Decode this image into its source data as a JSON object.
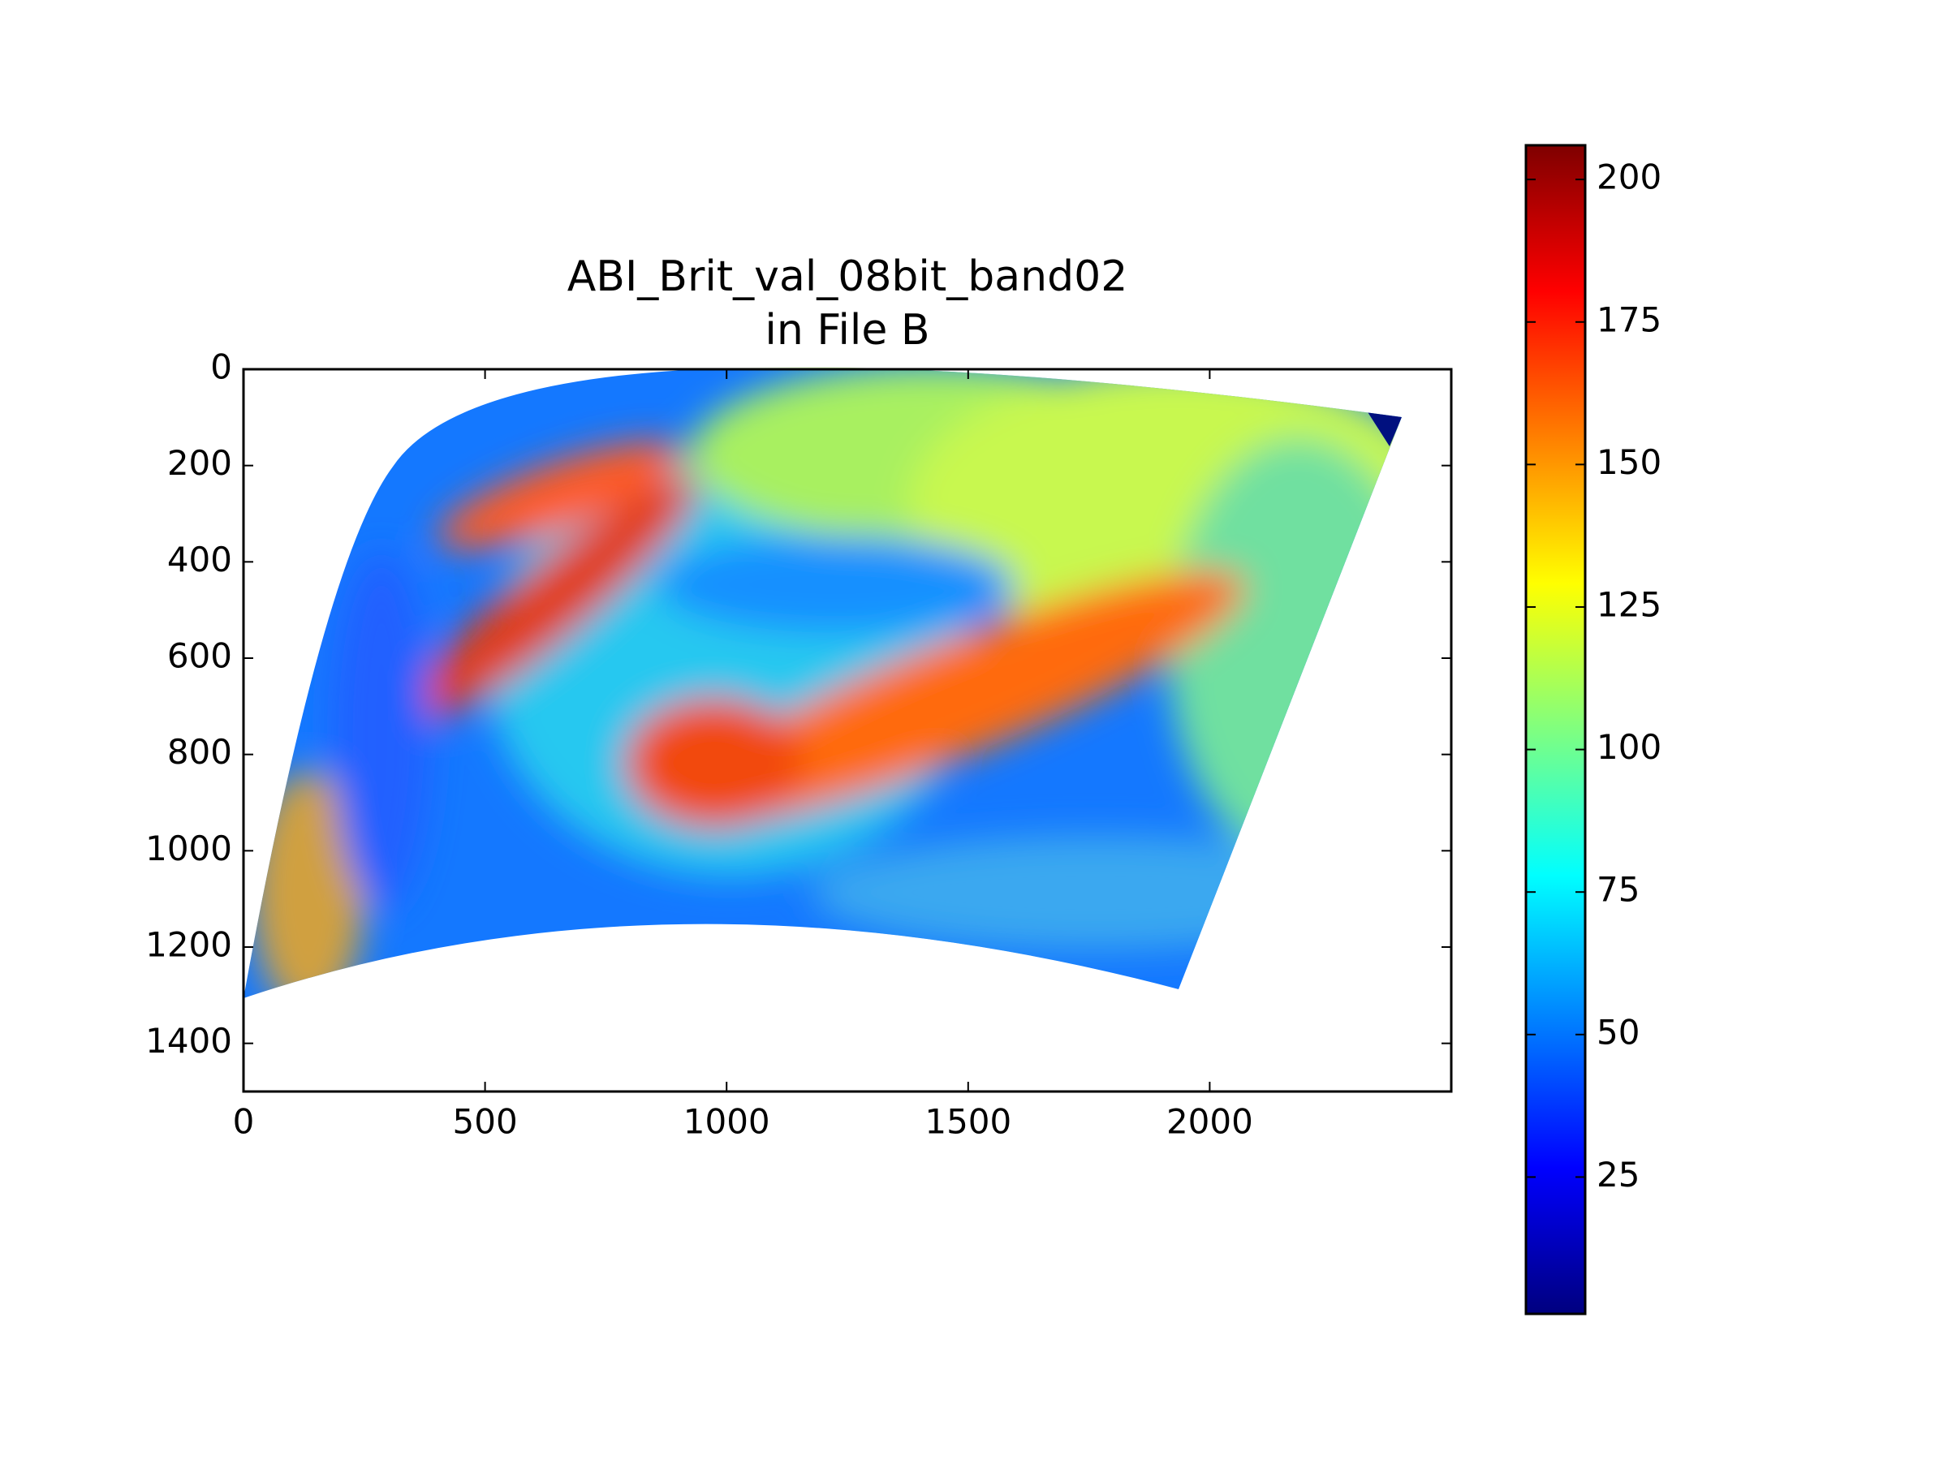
{
  "chart_data": {
    "type": "image",
    "title": "ABI_Brit_val_08bit_band02",
    "subtitle": "in File B",
    "xlim": [
      0,
      2500
    ],
    "xticks": [
      0,
      500,
      1000,
      1500,
      2000
    ],
    "ylim": [
      1500,
      0
    ],
    "yticks": [
      0,
      200,
      400,
      600,
      800,
      1000,
      1200,
      1400
    ],
    "colorbar": {
      "colormap": "jet",
      "clim": [
        1,
        206
      ],
      "ticks": [
        25,
        50,
        75,
        100,
        125,
        150,
        175,
        200
      ]
    }
  }
}
